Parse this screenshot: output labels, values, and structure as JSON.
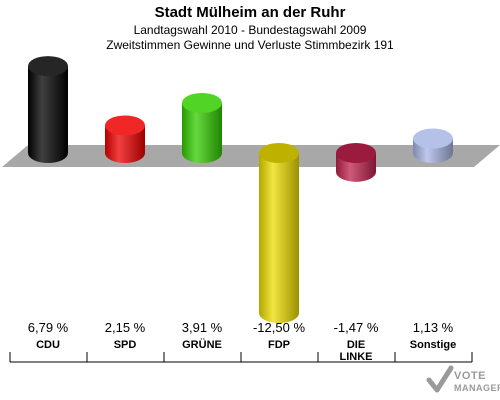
{
  "header": {
    "title": "Stadt Mülheim an der Ruhr",
    "subtitle1": "Landtagswahl 2010 - Bundestagswahl 2009",
    "subtitle2": "Zweitstimmen Gewinne und Verluste Stimmbezirk 191"
  },
  "chart_data": {
    "type": "bar",
    "title": "Stadt Mülheim an der Ruhr",
    "subtitle": "Landtagswahl 2010 - Bundestagswahl 2009 / Zweitstimmen Gewinne und Verluste Stimmbezirk 191",
    "categories": [
      "CDU",
      "SPD",
      "GRÜNE",
      "FDP",
      "DIE LINKE",
      "Sonstige"
    ],
    "category_labels": [
      [
        "CDU"
      ],
      [
        "SPD"
      ],
      [
        "GRÜNE"
      ],
      [
        "FDP"
      ],
      [
        "DIE",
        "LINKE"
      ],
      [
        "Sonstige"
      ]
    ],
    "values": [
      6.79,
      2.15,
      3.91,
      -12.5,
      -1.47,
      1.13
    ],
    "value_labels": [
      "6,79 %",
      "2,15 %",
      "3,91 %",
      "-12,50 %",
      "-1,47 %",
      "1,13 %"
    ],
    "colors": [
      "#000000",
      "#ee0000",
      "#33cc00",
      "#eedd00",
      "#c0224d",
      "#a8b6e4"
    ],
    "ylim": [
      -12.5,
      6.79
    ]
  },
  "logo": {
    "line1": "VOTE",
    "line2": "MANAGER"
  }
}
